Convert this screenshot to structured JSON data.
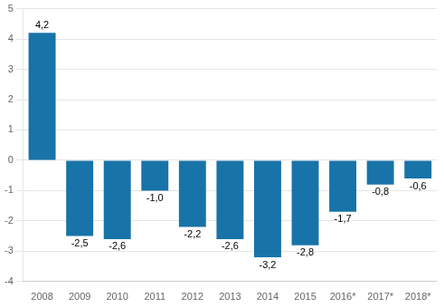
{
  "chart_data": {
    "type": "bar",
    "categories": [
      "2008",
      "2009",
      "2010",
      "2011",
      "2012",
      "2013",
      "2014",
      "2015",
      "2016*",
      "2017*",
      "2018*"
    ],
    "values": [
      4.2,
      -2.5,
      -2.6,
      -1.0,
      -2.2,
      -2.6,
      -3.2,
      -2.8,
      -1.7,
      -0.8,
      -0.6
    ],
    "value_labels": [
      "4,2",
      "-2,5",
      "-2,6",
      "-1,0",
      "-2,2",
      "-2,6",
      "-3,2",
      "-2,8",
      "-1,7",
      "-0,8",
      "-0,6"
    ],
    "color": "#1873a8",
    "ylim": [
      -4,
      5
    ],
    "yticks": [
      -4,
      -3,
      -2,
      -1,
      0,
      1,
      2,
      3,
      4,
      5
    ],
    "grid": true,
    "data_labels": true
  }
}
